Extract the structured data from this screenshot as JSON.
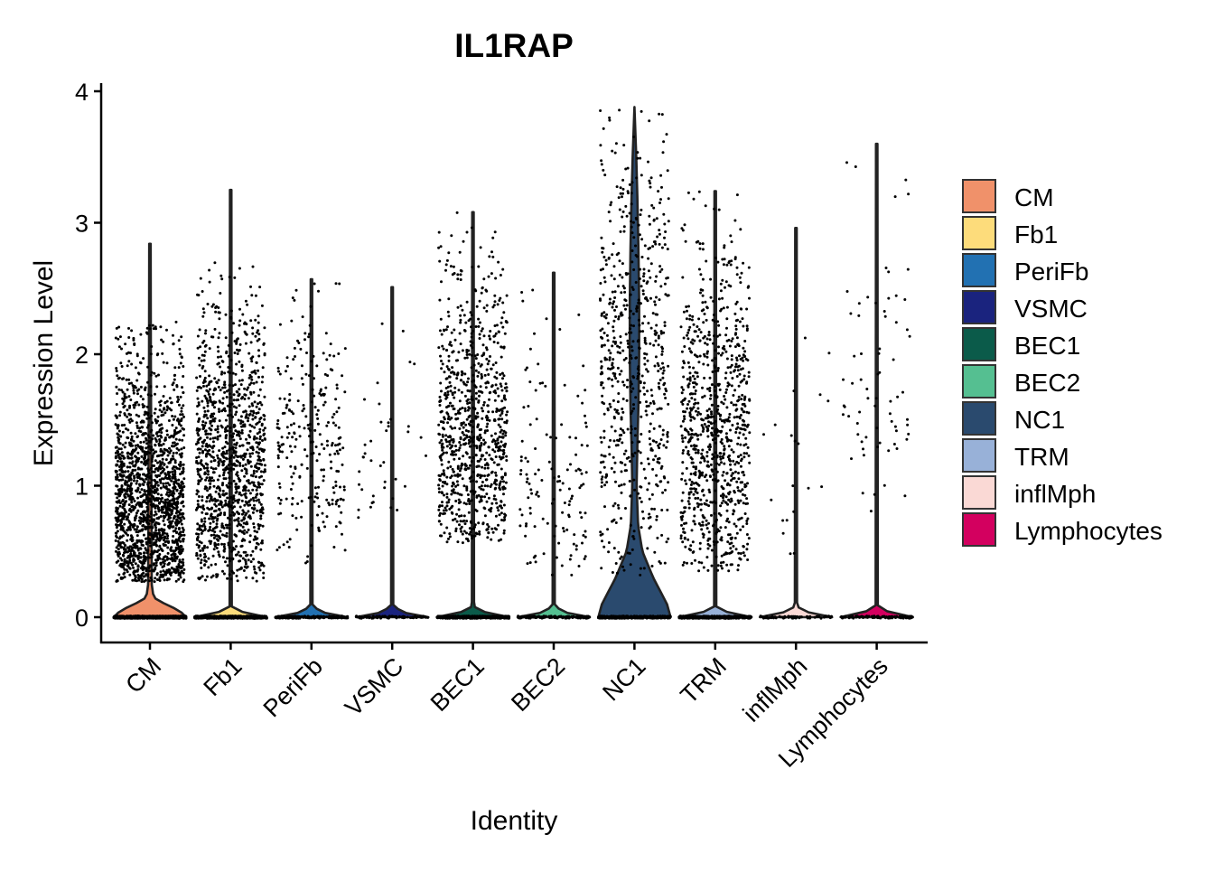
{
  "chart_data": {
    "type": "violin",
    "title": "IL1RAP",
    "xlabel": "Identity",
    "ylabel": "Expression Level",
    "ylim": [
      -0.2,
      4.05
    ],
    "yticks": [
      0,
      1,
      2,
      3,
      4
    ],
    "jitter_points": true,
    "legend_position": "right",
    "categories": [
      "CM",
      "Fb1",
      "PeriFb",
      "VSMC",
      "BEC1",
      "BEC2",
      "NC1",
      "TRM",
      "inflMph",
      "Lymphocytes"
    ],
    "series": [
      {
        "name": "CM",
        "color": "#F0916A",
        "max": 2.84,
        "zero_fraction": 0.62,
        "nonzero_count": 1800,
        "nonzero_range": [
          0.27,
          2.25
        ],
        "nonzero_center": 0.75,
        "violin_profile": [
          [
            0.0,
            1.0
          ],
          [
            0.05,
            0.82
          ],
          [
            0.1,
            0.42
          ],
          [
            0.15,
            0.1
          ],
          [
            0.25,
            0.05
          ],
          [
            1.0,
            0.04
          ],
          [
            2.0,
            0.025
          ],
          [
            2.84,
            0.02
          ]
        ]
      },
      {
        "name": "Fb1",
        "color": "#FDDC7B",
        "max": 3.25,
        "zero_fraction": 0.8,
        "nonzero_count": 1200,
        "nonzero_range": [
          0.27,
          2.7
        ],
        "nonzero_center": 1.1,
        "violin_profile": [
          [
            0.0,
            1.0
          ],
          [
            0.03,
            0.4
          ],
          [
            0.08,
            0.03
          ],
          [
            3.25,
            0.02
          ]
        ]
      },
      {
        "name": "PeriFb",
        "color": "#2271B2",
        "max": 2.57,
        "zero_fraction": 0.85,
        "nonzero_count": 260,
        "nonzero_range": [
          0.4,
          2.57
        ],
        "nonzero_center": 1.3,
        "violin_profile": [
          [
            0.0,
            1.0
          ],
          [
            0.03,
            0.4
          ],
          [
            0.08,
            0.03
          ],
          [
            2.57,
            0.02
          ]
        ]
      },
      {
        "name": "VSMC",
        "color": "#1A237E",
        "max": 2.51,
        "zero_fraction": 0.93,
        "nonzero_count": 40,
        "nonzero_range": [
          0.75,
          2.51
        ],
        "nonzero_center": 1.2,
        "violin_profile": [
          [
            0.0,
            1.0
          ],
          [
            0.03,
            0.4
          ],
          [
            0.08,
            0.03
          ],
          [
            2.51,
            0.02
          ]
        ]
      },
      {
        "name": "BEC1",
        "color": "#0B5B4A",
        "max": 3.08,
        "zero_fraction": 0.8,
        "nonzero_count": 900,
        "nonzero_range": [
          0.55,
          3.08
        ],
        "nonzero_center": 1.3,
        "violin_profile": [
          [
            0.0,
            1.0
          ],
          [
            0.03,
            0.4
          ],
          [
            0.08,
            0.03
          ],
          [
            3.08,
            0.02
          ]
        ]
      },
      {
        "name": "BEC2",
        "color": "#55BF91",
        "max": 2.62,
        "zero_fraction": 0.88,
        "nonzero_count": 130,
        "nonzero_range": [
          0.32,
          2.62
        ],
        "nonzero_center": 0.95,
        "violin_profile": [
          [
            0.0,
            1.0
          ],
          [
            0.03,
            0.4
          ],
          [
            0.08,
            0.03
          ],
          [
            2.62,
            0.02
          ]
        ]
      },
      {
        "name": "NC1",
        "color": "#2A4A6E",
        "max": 3.88,
        "zero_fraction": 0.4,
        "nonzero_count": 650,
        "nonzero_range": [
          0.3,
          3.88
        ],
        "nonzero_center": 1.9,
        "violin_profile": [
          [
            0.0,
            1.0
          ],
          [
            0.1,
            0.9
          ],
          [
            0.3,
            0.52
          ],
          [
            0.5,
            0.22
          ],
          [
            0.7,
            0.1
          ],
          [
            1.0,
            0.06
          ],
          [
            1.3,
            0.08
          ],
          [
            1.6,
            0.11
          ],
          [
            2.0,
            0.13
          ],
          [
            2.4,
            0.13
          ],
          [
            2.8,
            0.11
          ],
          [
            3.2,
            0.08
          ],
          [
            3.5,
            0.05
          ],
          [
            3.88,
            0.0
          ]
        ]
      },
      {
        "name": "TRM",
        "color": "#98B1D8",
        "max": 3.24,
        "zero_fraction": 0.85,
        "nonzero_count": 900,
        "nonzero_range": [
          0.35,
          3.24
        ],
        "nonzero_center": 1.35,
        "violin_profile": [
          [
            0.0,
            1.0
          ],
          [
            0.03,
            0.4
          ],
          [
            0.08,
            0.03
          ],
          [
            3.24,
            0.02
          ]
        ]
      },
      {
        "name": "inflMph",
        "color": "#FAD9D5",
        "max": 2.96,
        "zero_fraction": 0.9,
        "nonzero_count": 20,
        "nonzero_range": [
          0.4,
          2.96
        ],
        "nonzero_center": 1.2,
        "violin_profile": [
          [
            0.0,
            1.0
          ],
          [
            0.03,
            0.4
          ],
          [
            0.08,
            0.03
          ],
          [
            2.96,
            0.02
          ]
        ]
      },
      {
        "name": "Lymphocytes",
        "color": "#D3005F",
        "max": 3.6,
        "zero_fraction": 0.9,
        "nonzero_count": 70,
        "nonzero_range": [
          0.8,
          3.6
        ],
        "nonzero_center": 1.7,
        "violin_profile": [
          [
            0.0,
            1.0
          ],
          [
            0.03,
            0.4
          ],
          [
            0.08,
            0.03
          ],
          [
            3.6,
            0.02
          ]
        ]
      }
    ]
  }
}
